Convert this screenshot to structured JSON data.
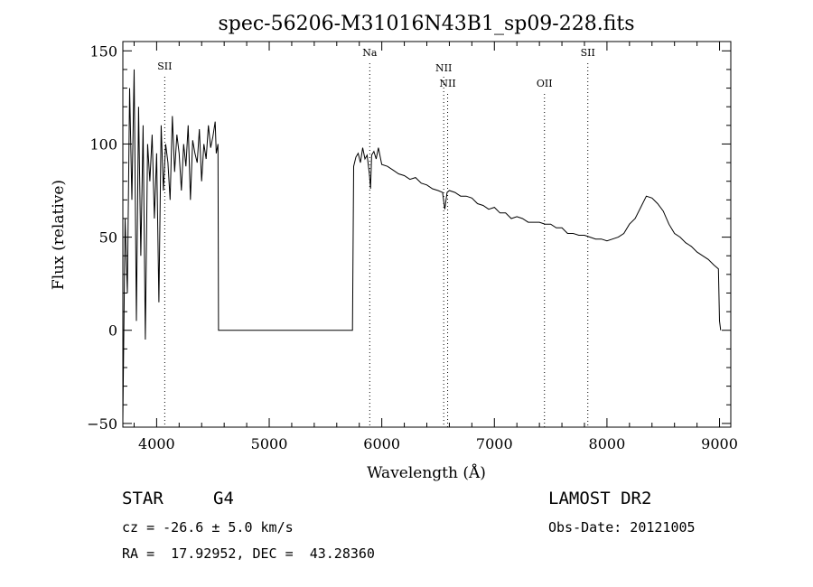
{
  "chart_data": {
    "type": "line",
    "title": "spec-56206-M31016N43B1_sp09-228.fits",
    "xlabel": "Wavelength (Å)",
    "ylabel": "Flux (relative)",
    "xlim": [
      3700,
      9100
    ],
    "ylim": [
      -52,
      155
    ],
    "x_ticks": [
      4000,
      5000,
      6000,
      7000,
      8000,
      9000
    ],
    "y_ticks": [
      -50,
      0,
      50,
      100,
      150
    ],
    "grid": false,
    "series": [
      {
        "x": [
          3700,
          3720,
          3740,
          3760,
          3780,
          3800,
          3820,
          3840,
          3860,
          3880,
          3900,
          3920,
          3940,
          3960,
          3980,
          4000,
          4020,
          4040,
          4060,
          4080,
          4100,
          4120,
          4140,
          4160,
          4180,
          4200,
          4220,
          4240,
          4260,
          4280,
          4300,
          4320,
          4340,
          4360,
          4380,
          4400,
          4420,
          4440,
          4460,
          4480,
          4500,
          4520,
          4530,
          4545,
          4550,
          5600,
          5700,
          5740,
          5750,
          5770,
          5790,
          5810,
          5830,
          5850,
          5870,
          5890,
          5900,
          5910,
          5930,
          5950,
          5970,
          6000,
          6050,
          6100,
          6150,
          6200,
          6250,
          6300,
          6350,
          6400,
          6450,
          6500,
          6540,
          6560,
          6580,
          6600,
          6650,
          6700,
          6750,
          6800,
          6850,
          6900,
          6950,
          7000,
          7050,
          7100,
          7150,
          7200,
          7250,
          7300,
          7350,
          7400,
          7450,
          7500,
          7550,
          7600,
          7650,
          7700,
          7750,
          7800,
          7850,
          7900,
          7950,
          8000,
          8050,
          8100,
          8150,
          8200,
          8250,
          8300,
          8350,
          8400,
          8450,
          8500,
          8550,
          8600,
          8650,
          8700,
          8750,
          8800,
          8850,
          8900,
          8950,
          8990,
          9000,
          9010
        ],
        "y": [
          -48,
          60,
          20,
          130,
          70,
          140,
          5,
          120,
          40,
          110,
          -5,
          100,
          80,
          105,
          60,
          95,
          15,
          110,
          75,
          100,
          90,
          70,
          115,
          85,
          105,
          95,
          75,
          100,
          88,
          110,
          70,
          102,
          95,
          90,
          108,
          80,
          100,
          92,
          110,
          98,
          104,
          112,
          95,
          100,
          0,
          0,
          0,
          0,
          88,
          93,
          95,
          90,
          98,
          92,
          94,
          84,
          76,
          94,
          96,
          92,
          98,
          89,
          88,
          86,
          84,
          83,
          81,
          82,
          79,
          78,
          76,
          75,
          74,
          65,
          74,
          75,
          74,
          72,
          72,
          71,
          68,
          67,
          65,
          66,
          63,
          63,
          60,
          61,
          60,
          58,
          58,
          58,
          57,
          57,
          55,
          55,
          52,
          52,
          51,
          51,
          50,
          49,
          49,
          48,
          49,
          50,
          52,
          57,
          60,
          66,
          72,
          71,
          68,
          64,
          57,
          52,
          50,
          47,
          45,
          42,
          40,
          38,
          35,
          33,
          5,
          0
        ]
      }
    ],
    "spectral_lines": [
      {
        "label": "SII",
        "x": 4072
      },
      {
        "label": "Na",
        "x": 5893
      },
      {
        "label": "NII",
        "x": 6550
      },
      {
        "label": "NII",
        "x": 6585
      },
      {
        "label": "OII",
        "x": 7445
      },
      {
        "label": "SII",
        "x": 7830
      }
    ]
  },
  "info": {
    "object_type": "STAR",
    "subclass": "G4",
    "survey": "LAMOST DR2",
    "cz": "cz = -26.6 ± 5.0 km/s",
    "obs_date": "Obs-Date: 20121005",
    "radec": "RA =  17.92952, DEC =  43.28360"
  }
}
